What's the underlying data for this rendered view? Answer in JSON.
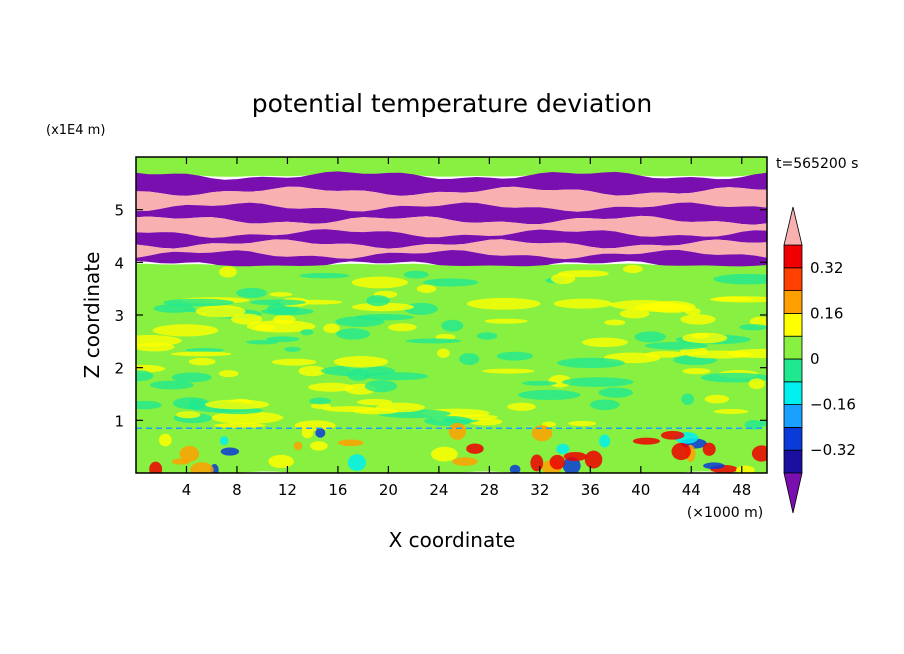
{
  "chart_data": {
    "type": "heatmap",
    "title": "potential temperature deviation",
    "xlabel": "X coordinate",
    "ylabel": "Z coordinate",
    "x_unit": "(×1000 m)",
    "y_unit": "(x1E4 m)",
    "time_label": "t=565200 s",
    "xlim": [
      0,
      50
    ],
    "ylim": [
      0,
      6
    ],
    "x_ticks": [
      4,
      8,
      12,
      16,
      20,
      24,
      28,
      32,
      36,
      40,
      44,
      48
    ],
    "y_ticks": [
      1,
      2,
      3,
      4,
      5
    ],
    "colorbar": {
      "levels": [
        -0.4,
        -0.32,
        -0.24,
        -0.16,
        -0.08,
        0,
        0.08,
        0.16,
        0.24,
        0.32,
        0.4
      ],
      "labels": [
        0.32,
        0.16,
        0,
        -0.16,
        -0.32
      ],
      "label_text": [
        "0.32",
        "0.16",
        "0",
        "−0.16",
        "−0.32"
      ],
      "colors": [
        "#7a0fb0",
        "#1a0fa0",
        "#0a3ad8",
        "#1aa0ff",
        "#00f0f0",
        "#20e890",
        "#88f040",
        "#ffff00",
        "#ffa000",
        "#ff4000",
        "#f00000",
        "#f8b0b0"
      ],
      "over_color": "#f8b0b0",
      "under_color": "#7a0fb0"
    },
    "layers": [
      {
        "z_top": 6.0,
        "z_bottom": 5.65,
        "value": 0.02
      },
      {
        "z_top": 5.65,
        "z_bottom": 5.35,
        "value": -0.45
      },
      {
        "z_top": 5.35,
        "z_bottom": 5.05,
        "value": 0.45
      },
      {
        "z_top": 5.05,
        "z_bottom": 4.8,
        "value": -0.45
      },
      {
        "z_top": 4.8,
        "z_bottom": 4.55,
        "value": 0.45
      },
      {
        "z_top": 4.55,
        "z_bottom": 4.35,
        "value": -0.45
      },
      {
        "z_top": 4.35,
        "z_bottom": 4.15,
        "value": 0.45
      },
      {
        "z_top": 4.15,
        "z_bottom": 3.95,
        "value": -0.45
      },
      {
        "z_top": 3.95,
        "z_bottom": 0.85,
        "value": 0.04
      },
      {
        "z_top": 0.85,
        "z_bottom": 0.0,
        "value": 0.02
      }
    ]
  }
}
